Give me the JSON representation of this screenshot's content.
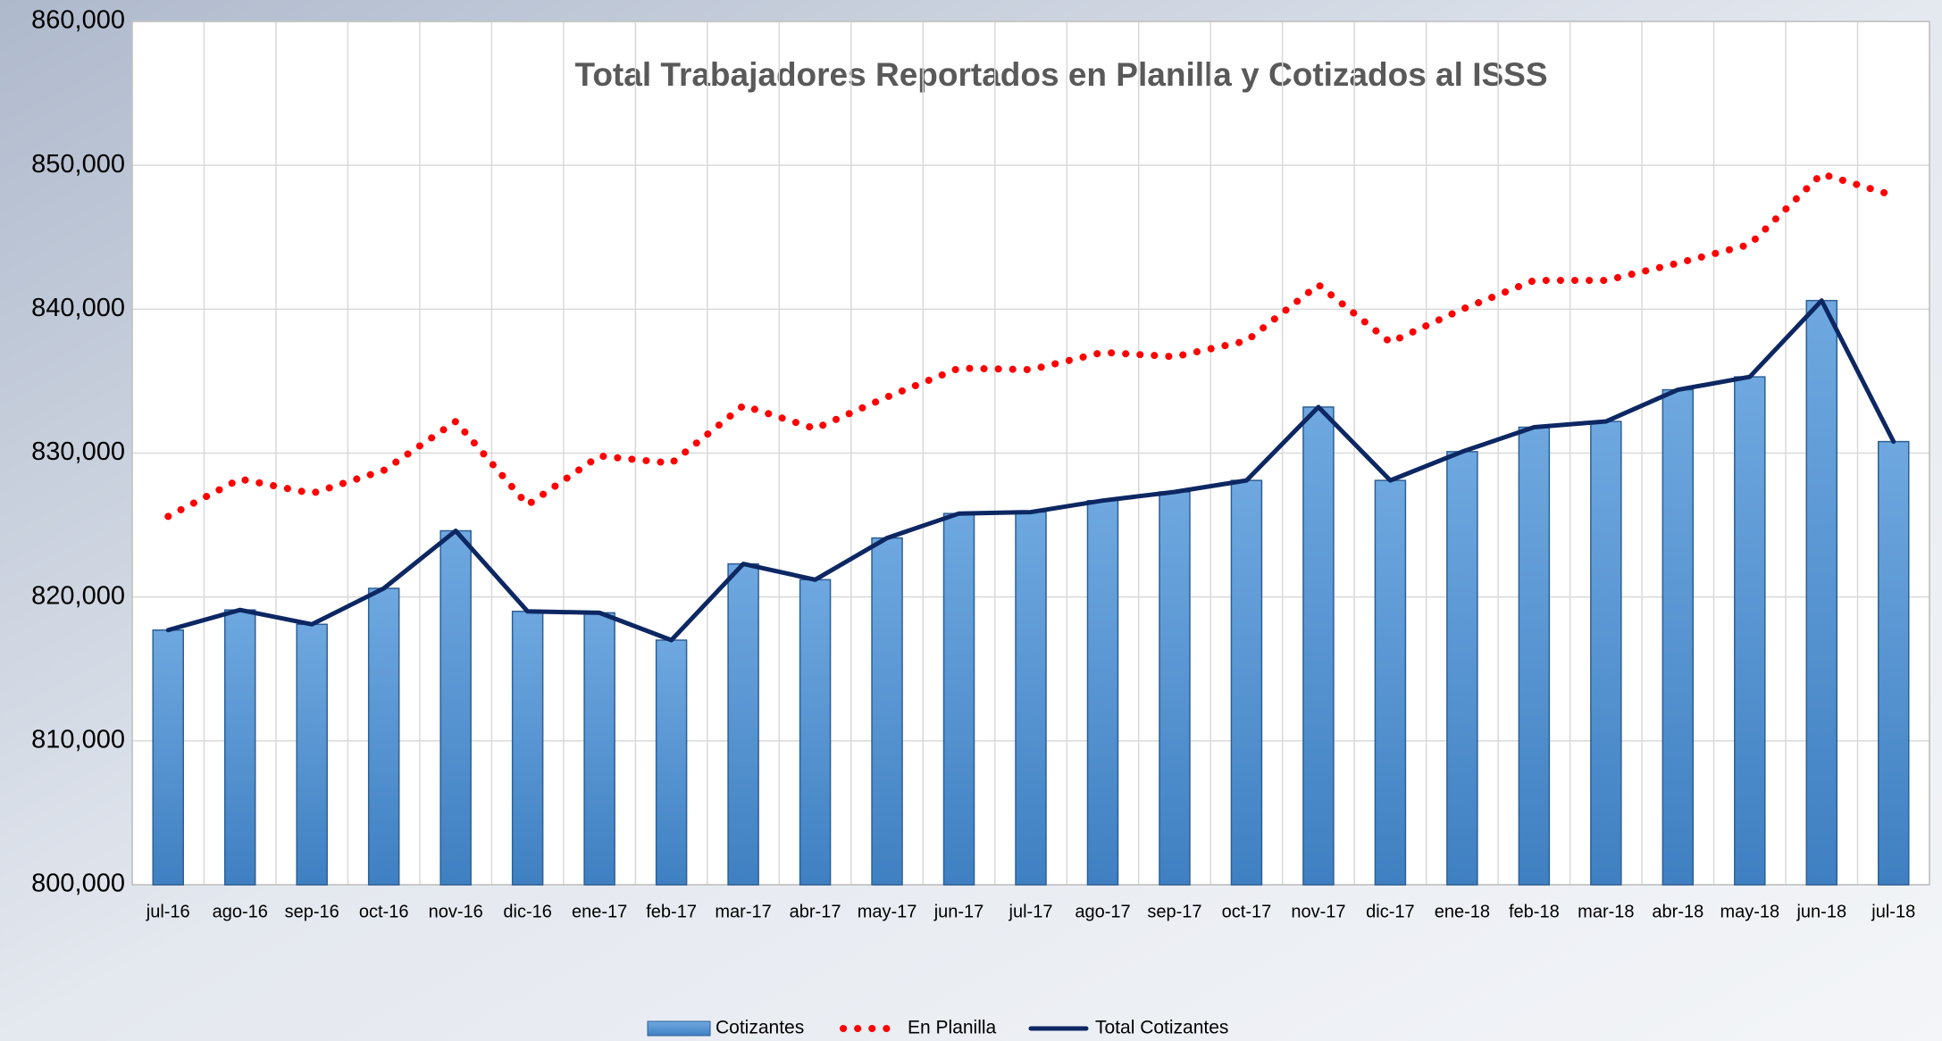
{
  "chart_data": {
    "type": "combo",
    "title": "Total Trabajadores Reportados en Planilla y Cotizados al ISSS",
    "categories": [
      "jul-16",
      "ago-16",
      "sep-16",
      "oct-16",
      "nov-16",
      "dic-16",
      "ene-17",
      "feb-17",
      "mar-17",
      "abr-17",
      "may-17",
      "jun-17",
      "jul-17",
      "ago-17",
      "sep-17",
      "oct-17",
      "nov-17",
      "dic-17",
      "ene-18",
      "feb-18",
      "mar-18",
      "abr-18",
      "may-18",
      "jun-18",
      "jul-18"
    ],
    "series": [
      {
        "name": "Cotizantes",
        "type": "bar",
        "color": "#5b9bd5",
        "values": [
          817700,
          819100,
          818100,
          820600,
          824600,
          819000,
          818900,
          817000,
          822300,
          821200,
          824100,
          825800,
          825900,
          826700,
          827300,
          828100,
          833200,
          828100,
          830100,
          831800,
          832200,
          834400,
          835300,
          840600,
          830800
        ]
      },
      {
        "name": "En Planilla",
        "type": "line",
        "dash": "dotted",
        "color": "#ff0000",
        "values": [
          825600,
          828200,
          827200,
          828800,
          832200,
          826400,
          829800,
          829300,
          833300,
          831700,
          833900,
          835900,
          835800,
          837000,
          836700,
          837800,
          841700,
          837700,
          840000,
          842000,
          842000,
          843200,
          844500,
          849400,
          847900
        ]
      },
      {
        "name": "Total Cotizantes",
        "type": "line",
        "dash": "solid",
        "color": "#0d2763",
        "values": [
          817700,
          819100,
          818100,
          820600,
          824600,
          819000,
          818900,
          817000,
          822300,
          821200,
          824100,
          825800,
          825900,
          826700,
          827300,
          828100,
          833200,
          828100,
          830100,
          831800,
          832200,
          834400,
          835300,
          840600,
          830800
        ]
      }
    ],
    "ylim": [
      800000,
      860000
    ],
    "yticks": [
      {
        "value": 800000,
        "label": "800,000"
      },
      {
        "value": 810000,
        "label": "810,000"
      },
      {
        "value": 820000,
        "label": "820,000"
      },
      {
        "value": 830000,
        "label": "830,000"
      },
      {
        "value": 840000,
        "label": "840,000"
      },
      {
        "value": 850000,
        "label": "850,000"
      },
      {
        "value": 860000,
        "label": "860,000"
      }
    ],
    "grid": true,
    "legend": "bottom"
  }
}
